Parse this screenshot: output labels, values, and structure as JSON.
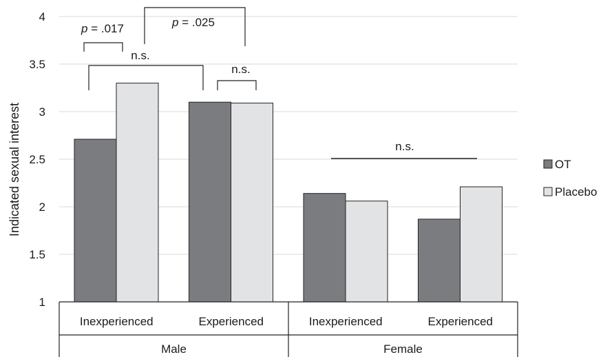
{
  "chart_data": {
    "type": "bar",
    "title": "",
    "ylabel": "Indicated sexual interest",
    "xlabel": "",
    "ylim": [
      1,
      4
    ],
    "yticks": [
      1,
      1.5,
      2,
      2.5,
      3,
      3.5,
      4
    ],
    "yticks_labels": [
      "1",
      "1.5",
      "2",
      "2.5",
      "3",
      "3.5",
      "4"
    ],
    "grid": true,
    "legend_position": "right",
    "groups": [
      {
        "label": "Male",
        "categories": [
          "Inexperienced",
          "Experienced"
        ]
      },
      {
        "label": "Female",
        "categories": [
          "Inexperienced",
          "Experienced"
        ]
      }
    ],
    "categories": [
      "Inexperienced",
      "Experienced",
      "Inexperienced",
      "Experienced"
    ],
    "series": [
      {
        "name": "OT",
        "color": "#7b7c80",
        "values": [
          2.71,
          3.1,
          2.14,
          1.87
        ]
      },
      {
        "name": "Placebo",
        "color": "#e2e3e5",
        "values": [
          3.3,
          3.09,
          2.06,
          2.21
        ]
      }
    ],
    "annotations": [
      {
        "p_label": "p",
        "text": " = .017"
      },
      {
        "p_label": "p",
        "text": " = .025"
      },
      {
        "text": "n.s."
      },
      {
        "text": "n.s."
      },
      {
        "text": "n.s."
      }
    ]
  }
}
